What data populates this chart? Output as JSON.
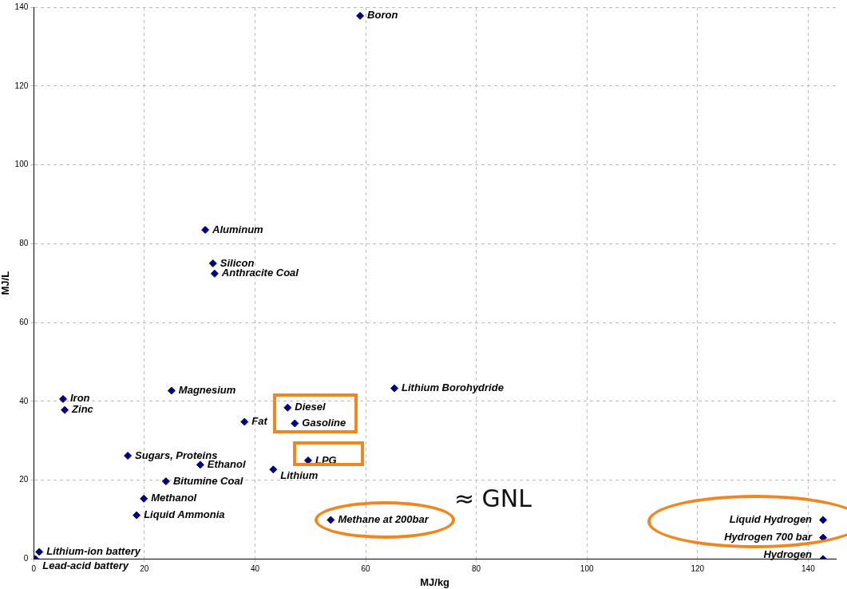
{
  "chart_data": {
    "type": "scatter",
    "xlabel": "MJ/kg",
    "ylabel": "MJ/L",
    "x": [
      59,
      31,
      32.4,
      32.7,
      24.9,
      5.3,
      5.6,
      38.1,
      45.9,
      47.2,
      65.2,
      17,
      30.1,
      49.6,
      43.3,
      23.9,
      19.9,
      18.6,
      53.7,
      142.7,
      142.7,
      142.7,
      1,
      0.3
    ],
    "series": [
      {
        "color": "#000080",
        "values": [
          137.8,
          83.5,
          75,
          72.4,
          42.7,
          40.6,
          37.8,
          34.8,
          38.4,
          34.4,
          43.3,
          26.2,
          23.9,
          25,
          22.7,
          19.7,
          15.3,
          11.1,
          9.9,
          9.9,
          5.4,
          0,
          1.8,
          0
        ]
      }
    ],
    "annotations": [
      {
        "text": "Boron",
        "x": 59,
        "y": 137.8
      },
      {
        "text": "Aluminum",
        "x": 31,
        "y": 83.5
      },
      {
        "text": "Silicon",
        "x": 32.4,
        "y": 75
      },
      {
        "text": "Anthracite Coal",
        "x": 32.7,
        "y": 72.4
      },
      {
        "text": "Magnesium",
        "x": 24.9,
        "y": 42.7
      },
      {
        "text": "Iron",
        "x": 5.3,
        "y": 40.6
      },
      {
        "text": "Zinc",
        "x": 5.6,
        "y": 37.8
      },
      {
        "text": "Fat",
        "x": 38.1,
        "y": 34.8
      },
      {
        "text": "Diesel",
        "x": 45.9,
        "y": 38.4
      },
      {
        "text": "Gasoline",
        "x": 47.2,
        "y": 34.4
      },
      {
        "text": "Lithium Borohydride",
        "x": 65.2,
        "y": 43.3
      },
      {
        "text": "Sugars, Proteins",
        "x": 17,
        "y": 26.2
      },
      {
        "text": "Ethanol",
        "x": 30.1,
        "y": 23.9
      },
      {
        "text": "LPG",
        "x": 49.6,
        "y": 25
      },
      {
        "text": "Lithium",
        "x": 43.3,
        "y": 22.7
      },
      {
        "text": "Bitumine Coal",
        "x": 23.9,
        "y": 19.7
      },
      {
        "text": "Methanol",
        "x": 19.9,
        "y": 15.3
      },
      {
        "text": "Liquid Ammonia",
        "x": 18.6,
        "y": 11.1
      },
      {
        "text": "Methane at 200bar",
        "x": 53.7,
        "y": 9.9
      },
      {
        "text": "Liquid Hydrogen",
        "x": 142.7,
        "y": 9.9
      },
      {
        "text": "Hydrogen 700 bar",
        "x": 142.7,
        "y": 5.4
      },
      {
        "text": "Hydrogen",
        "x": 142.7,
        "y": 0
      },
      {
        "text": "Lithium-ion battery",
        "x": 1,
        "y": 1.8
      },
      {
        "text": "Lead-acid battery",
        "x": 0.3,
        "y": 0
      },
      "≈ GNL"
    ],
    "xlim": [
      0,
      145
    ],
    "xticks": [
      0,
      20,
      40,
      60,
      80,
      100,
      120,
      140
    ],
    "ylim": [
      0,
      140
    ],
    "yticks": [
      0,
      20,
      40,
      60,
      80,
      100,
      120,
      140
    ],
    "grid": true,
    "legend": false,
    "marker": "diamond"
  }
}
